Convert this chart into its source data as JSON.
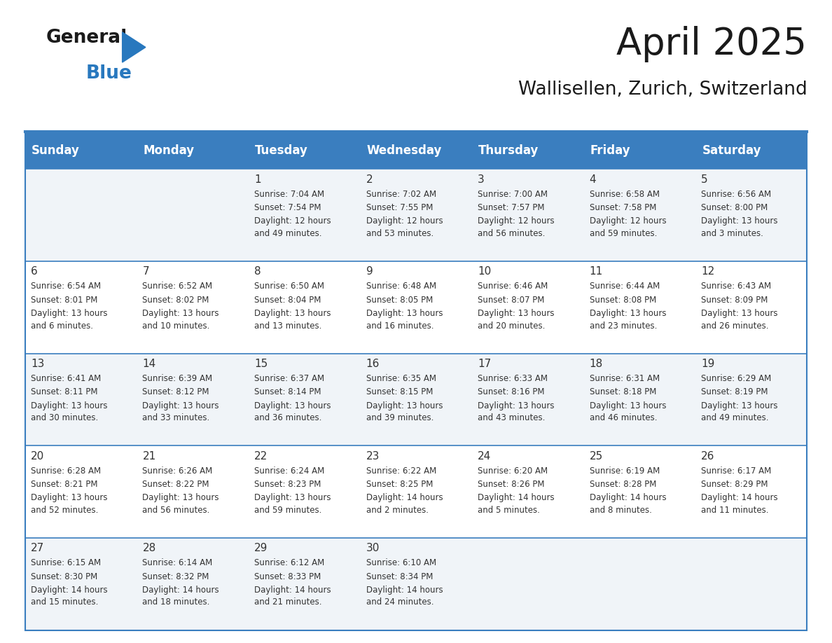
{
  "title": "April 2025",
  "subtitle": "Wallisellen, Zurich, Switzerland",
  "days_of_week": [
    "Sunday",
    "Monday",
    "Tuesday",
    "Wednesday",
    "Thursday",
    "Friday",
    "Saturday"
  ],
  "header_bg": "#3a7ebf",
  "header_text": "#ffffff",
  "row_bg_even": "#f0f4f8",
  "row_bg_odd": "#ffffff",
  "border_color": "#3a7ebf",
  "text_color": "#333333",
  "day_number_color": "#333333",
  "logo_general_color": "#1a1a1a",
  "logo_blue_color": "#2878be",
  "title_color": "#1a1a1a",
  "subtitle_color": "#1a1a1a",
  "calendar_data": [
    [
      {
        "day": null,
        "sunrise": null,
        "sunset": null,
        "daylight": null
      },
      {
        "day": null,
        "sunrise": null,
        "sunset": null,
        "daylight": null
      },
      {
        "day": 1,
        "sunrise": "7:04 AM",
        "sunset": "7:54 PM",
        "daylight": "12 hours\nand 49 minutes."
      },
      {
        "day": 2,
        "sunrise": "7:02 AM",
        "sunset": "7:55 PM",
        "daylight": "12 hours\nand 53 minutes."
      },
      {
        "day": 3,
        "sunrise": "7:00 AM",
        "sunset": "7:57 PM",
        "daylight": "12 hours\nand 56 minutes."
      },
      {
        "day": 4,
        "sunrise": "6:58 AM",
        "sunset": "7:58 PM",
        "daylight": "12 hours\nand 59 minutes."
      },
      {
        "day": 5,
        "sunrise": "6:56 AM",
        "sunset": "8:00 PM",
        "daylight": "13 hours\nand 3 minutes."
      }
    ],
    [
      {
        "day": 6,
        "sunrise": "6:54 AM",
        "sunset": "8:01 PM",
        "daylight": "13 hours\nand 6 minutes."
      },
      {
        "day": 7,
        "sunrise": "6:52 AM",
        "sunset": "8:02 PM",
        "daylight": "13 hours\nand 10 minutes."
      },
      {
        "day": 8,
        "sunrise": "6:50 AM",
        "sunset": "8:04 PM",
        "daylight": "13 hours\nand 13 minutes."
      },
      {
        "day": 9,
        "sunrise": "6:48 AM",
        "sunset": "8:05 PM",
        "daylight": "13 hours\nand 16 minutes."
      },
      {
        "day": 10,
        "sunrise": "6:46 AM",
        "sunset": "8:07 PM",
        "daylight": "13 hours\nand 20 minutes."
      },
      {
        "day": 11,
        "sunrise": "6:44 AM",
        "sunset": "8:08 PM",
        "daylight": "13 hours\nand 23 minutes."
      },
      {
        "day": 12,
        "sunrise": "6:43 AM",
        "sunset": "8:09 PM",
        "daylight": "13 hours\nand 26 minutes."
      }
    ],
    [
      {
        "day": 13,
        "sunrise": "6:41 AM",
        "sunset": "8:11 PM",
        "daylight": "13 hours\nand 30 minutes."
      },
      {
        "day": 14,
        "sunrise": "6:39 AM",
        "sunset": "8:12 PM",
        "daylight": "13 hours\nand 33 minutes."
      },
      {
        "day": 15,
        "sunrise": "6:37 AM",
        "sunset": "8:14 PM",
        "daylight": "13 hours\nand 36 minutes."
      },
      {
        "day": 16,
        "sunrise": "6:35 AM",
        "sunset": "8:15 PM",
        "daylight": "13 hours\nand 39 minutes."
      },
      {
        "day": 17,
        "sunrise": "6:33 AM",
        "sunset": "8:16 PM",
        "daylight": "13 hours\nand 43 minutes."
      },
      {
        "day": 18,
        "sunrise": "6:31 AM",
        "sunset": "8:18 PM",
        "daylight": "13 hours\nand 46 minutes."
      },
      {
        "day": 19,
        "sunrise": "6:29 AM",
        "sunset": "8:19 PM",
        "daylight": "13 hours\nand 49 minutes."
      }
    ],
    [
      {
        "day": 20,
        "sunrise": "6:28 AM",
        "sunset": "8:21 PM",
        "daylight": "13 hours\nand 52 minutes."
      },
      {
        "day": 21,
        "sunrise": "6:26 AM",
        "sunset": "8:22 PM",
        "daylight": "13 hours\nand 56 minutes."
      },
      {
        "day": 22,
        "sunrise": "6:24 AM",
        "sunset": "8:23 PM",
        "daylight": "13 hours\nand 59 minutes."
      },
      {
        "day": 23,
        "sunrise": "6:22 AM",
        "sunset": "8:25 PM",
        "daylight": "14 hours\nand 2 minutes."
      },
      {
        "day": 24,
        "sunrise": "6:20 AM",
        "sunset": "8:26 PM",
        "daylight": "14 hours\nand 5 minutes."
      },
      {
        "day": 25,
        "sunrise": "6:19 AM",
        "sunset": "8:28 PM",
        "daylight": "14 hours\nand 8 minutes."
      },
      {
        "day": 26,
        "sunrise": "6:17 AM",
        "sunset": "8:29 PM",
        "daylight": "14 hours\nand 11 minutes."
      }
    ],
    [
      {
        "day": 27,
        "sunrise": "6:15 AM",
        "sunset": "8:30 PM",
        "daylight": "14 hours\nand 15 minutes."
      },
      {
        "day": 28,
        "sunrise": "6:14 AM",
        "sunset": "8:32 PM",
        "daylight": "14 hours\nand 18 minutes."
      },
      {
        "day": 29,
        "sunrise": "6:12 AM",
        "sunset": "8:33 PM",
        "daylight": "14 hours\nand 21 minutes."
      },
      {
        "day": 30,
        "sunrise": "6:10 AM",
        "sunset": "8:34 PM",
        "daylight": "14 hours\nand 24 minutes."
      },
      {
        "day": null,
        "sunrise": null,
        "sunset": null,
        "daylight": null
      },
      {
        "day": null,
        "sunrise": null,
        "sunset": null,
        "daylight": null
      },
      {
        "day": null,
        "sunrise": null,
        "sunset": null,
        "daylight": null
      }
    ]
  ]
}
